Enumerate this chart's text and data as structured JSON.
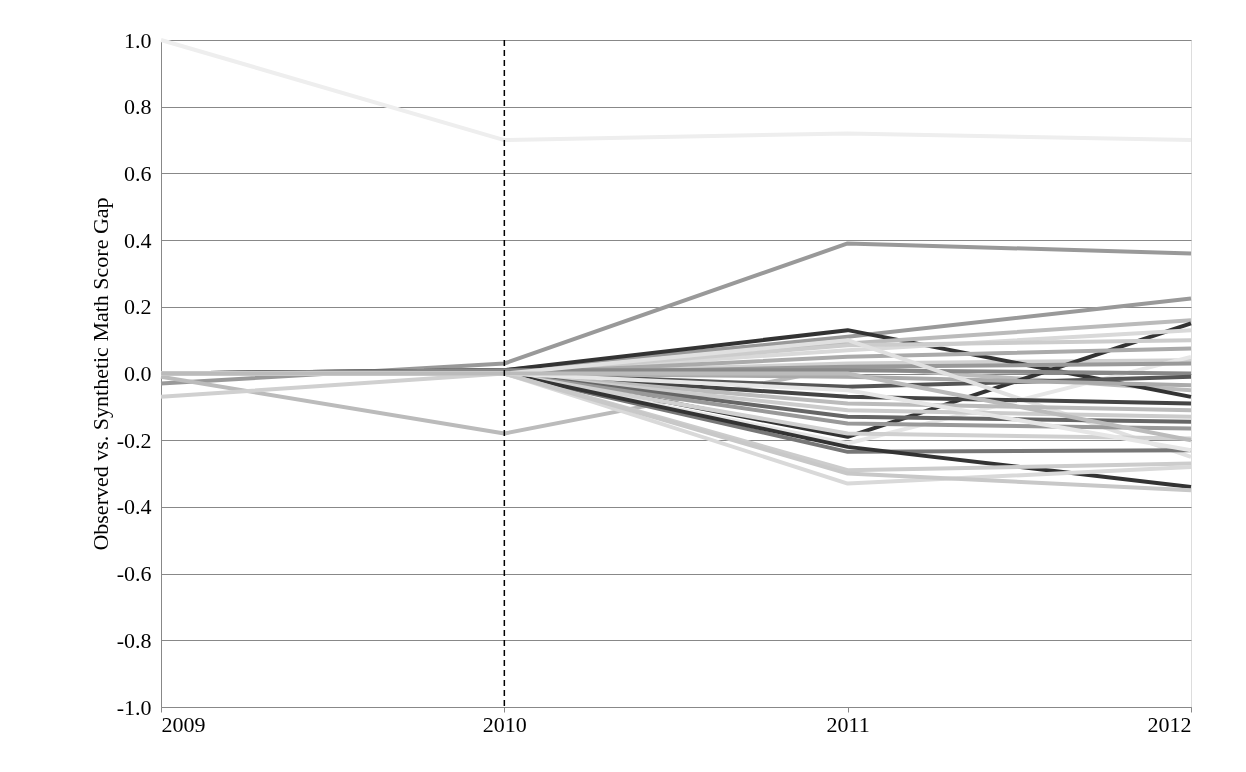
{
  "chart_data": {
    "type": "line",
    "ylabel": "Observed vs. Synthetic Math Score Gap",
    "x": [
      2009,
      2010,
      2011,
      2012
    ],
    "xlim": [
      2009,
      2012
    ],
    "xticks": [
      2009,
      2010,
      2011,
      2012
    ],
    "ylim": [
      -1.0,
      1.0
    ],
    "yticks": [
      {
        "value": -1.0,
        "label": "-1.0"
      },
      -0.8,
      -0.6,
      -0.4,
      -0.2,
      {
        "value": 0,
        "label": "0.0"
      },
      0.2,
      0.4,
      0.6,
      0.8,
      {
        "value": 1.0,
        "label": "1.0"
      }
    ],
    "grid": "y",
    "legend": false,
    "marker": "none",
    "line_style": "solid",
    "ref_lines": [
      {
        "axis": "x",
        "value": 2010,
        "color": "#000000",
        "line_style": "dashed"
      }
    ],
    "series": [
      {
        "color": "#eeeeee",
        "values": [
          1.0,
          0.7,
          0.72,
          0.7
        ]
      },
      {
        "color": "#999999",
        "values": [
          -0.03,
          0.03,
          0.39,
          0.36
        ]
      },
      {
        "color": "#bbbbbb",
        "values": [
          -0.01,
          -0.18,
          0.02,
          -0.05
        ]
      },
      {
        "color": "#d0d0d0",
        "values": [
          -0.07,
          0.0,
          0.03,
          0.04
        ]
      },
      {
        "color": "#999999",
        "values": [
          0.0,
          0.01,
          0.11,
          0.225
        ]
      },
      {
        "color": "#333333",
        "values": [
          0.0,
          0.01,
          0.13,
          -0.07
        ]
      },
      {
        "color": "#bbbbbb",
        "values": [
          0.0,
          0.0,
          0.09,
          0.16
        ]
      },
      {
        "color": "#333333",
        "values": [
          0.0,
          0.01,
          -0.19,
          0.15
        ]
      },
      {
        "color": "#d9d9d9",
        "values": [
          0.0,
          0.0,
          0.07,
          0.13
        ]
      },
      {
        "color": "#cccccc",
        "values": [
          0.0,
          0.0,
          0.085,
          0.1
        ]
      },
      {
        "color": "#aaaaaa",
        "values": [
          0.0,
          0.0,
          0.05,
          0.075
        ]
      },
      {
        "color": "#e6e6e6",
        "values": [
          0.0,
          0.0,
          -0.21,
          0.05
        ]
      },
      {
        "color": "#999999",
        "values": [
          0.0,
          0.0,
          0.02,
          0.03
        ]
      },
      {
        "color": "#888888",
        "values": [
          0.0,
          0.01,
          0.01,
          0.0
        ]
      },
      {
        "color": "#555555",
        "values": [
          0.0,
          0.0,
          -0.04,
          -0.01
        ]
      },
      {
        "color": "#aaaaaa",
        "values": [
          0.0,
          0.0,
          -0.01,
          -0.035
        ]
      },
      {
        "color": "#e0e0e0",
        "values": [
          0.0,
          0.0,
          0.1,
          -0.25
        ]
      },
      {
        "color": "#444444",
        "values": [
          0.0,
          0.0,
          -0.07,
          -0.09
        ]
      },
      {
        "color": "#bbbbbb",
        "values": [
          0.0,
          0.0,
          -0.09,
          -0.11
        ]
      },
      {
        "color": "#cccccc",
        "values": [
          0.0,
          0.0,
          -0.11,
          -0.13
        ]
      },
      {
        "color": "#666666",
        "values": [
          0.0,
          0.0,
          -0.13,
          -0.145
        ]
      },
      {
        "color": "#999999",
        "values": [
          0.0,
          0.0,
          -0.15,
          -0.165
        ]
      },
      {
        "color": "#d0d0d0",
        "values": [
          0.0,
          0.0,
          -0.18,
          -0.195
        ]
      },
      {
        "color": "#777777",
        "values": [
          0.0,
          0.0,
          -0.235,
          -0.23
        ]
      },
      {
        "color": "#333333",
        "values": [
          0.0,
          0.0,
          -0.22,
          -0.34
        ]
      },
      {
        "color": "#cccccc",
        "values": [
          0.0,
          0.0,
          -0.29,
          -0.27
        ]
      },
      {
        "color": "#d9d9d9",
        "values": [
          0.0,
          0.0,
          -0.33,
          -0.28
        ]
      },
      {
        "color": "#c8c8c8",
        "values": [
          0.0,
          0.0,
          -0.3,
          -0.35
        ]
      },
      {
        "color": "#e6e6e6",
        "values": [
          0.0,
          0.0,
          -0.05,
          -0.23
        ]
      },
      {
        "color": "#bbbbbb",
        "values": [
          0.0,
          0.0,
          0.0,
          -0.2
        ]
      }
    ]
  }
}
